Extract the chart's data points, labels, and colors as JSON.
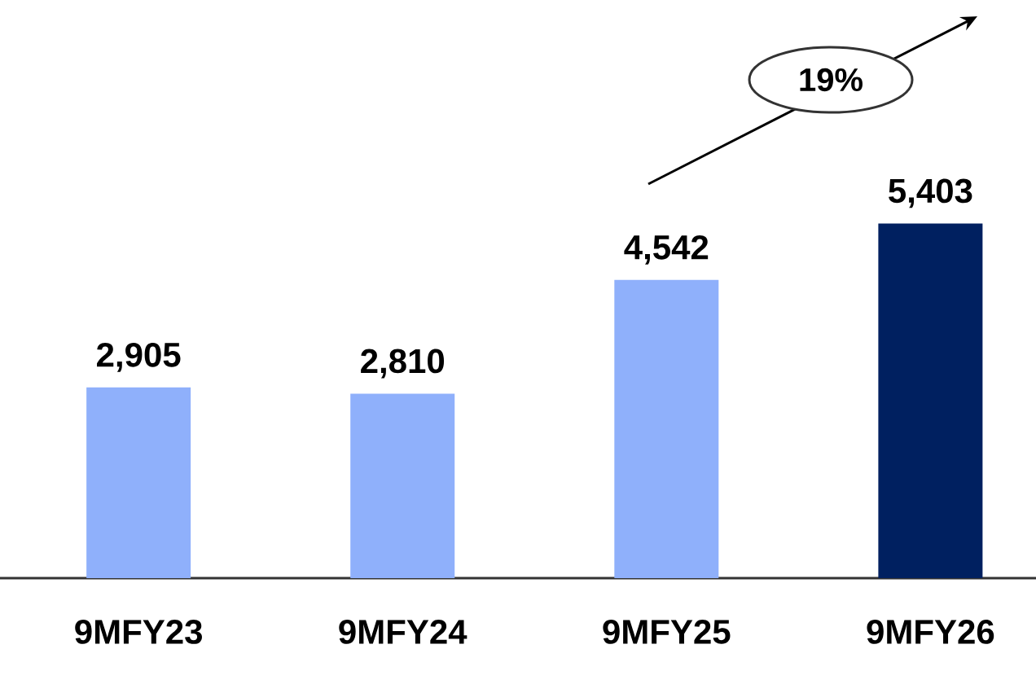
{
  "chart_data": {
    "type": "bar",
    "categories": [
      "9MFY23",
      "9MFY24",
      "9MFY25",
      "9MFY26"
    ],
    "values": [
      2905,
      2810,
      4542,
      5403
    ],
    "value_labels": [
      "2,905",
      "2,810",
      "4,542",
      "5,403"
    ],
    "colors": [
      "#8fb0fb",
      "#8fb0fb",
      "#8fb0fb",
      "#002060"
    ],
    "annotations": [
      "19%"
    ]
  }
}
